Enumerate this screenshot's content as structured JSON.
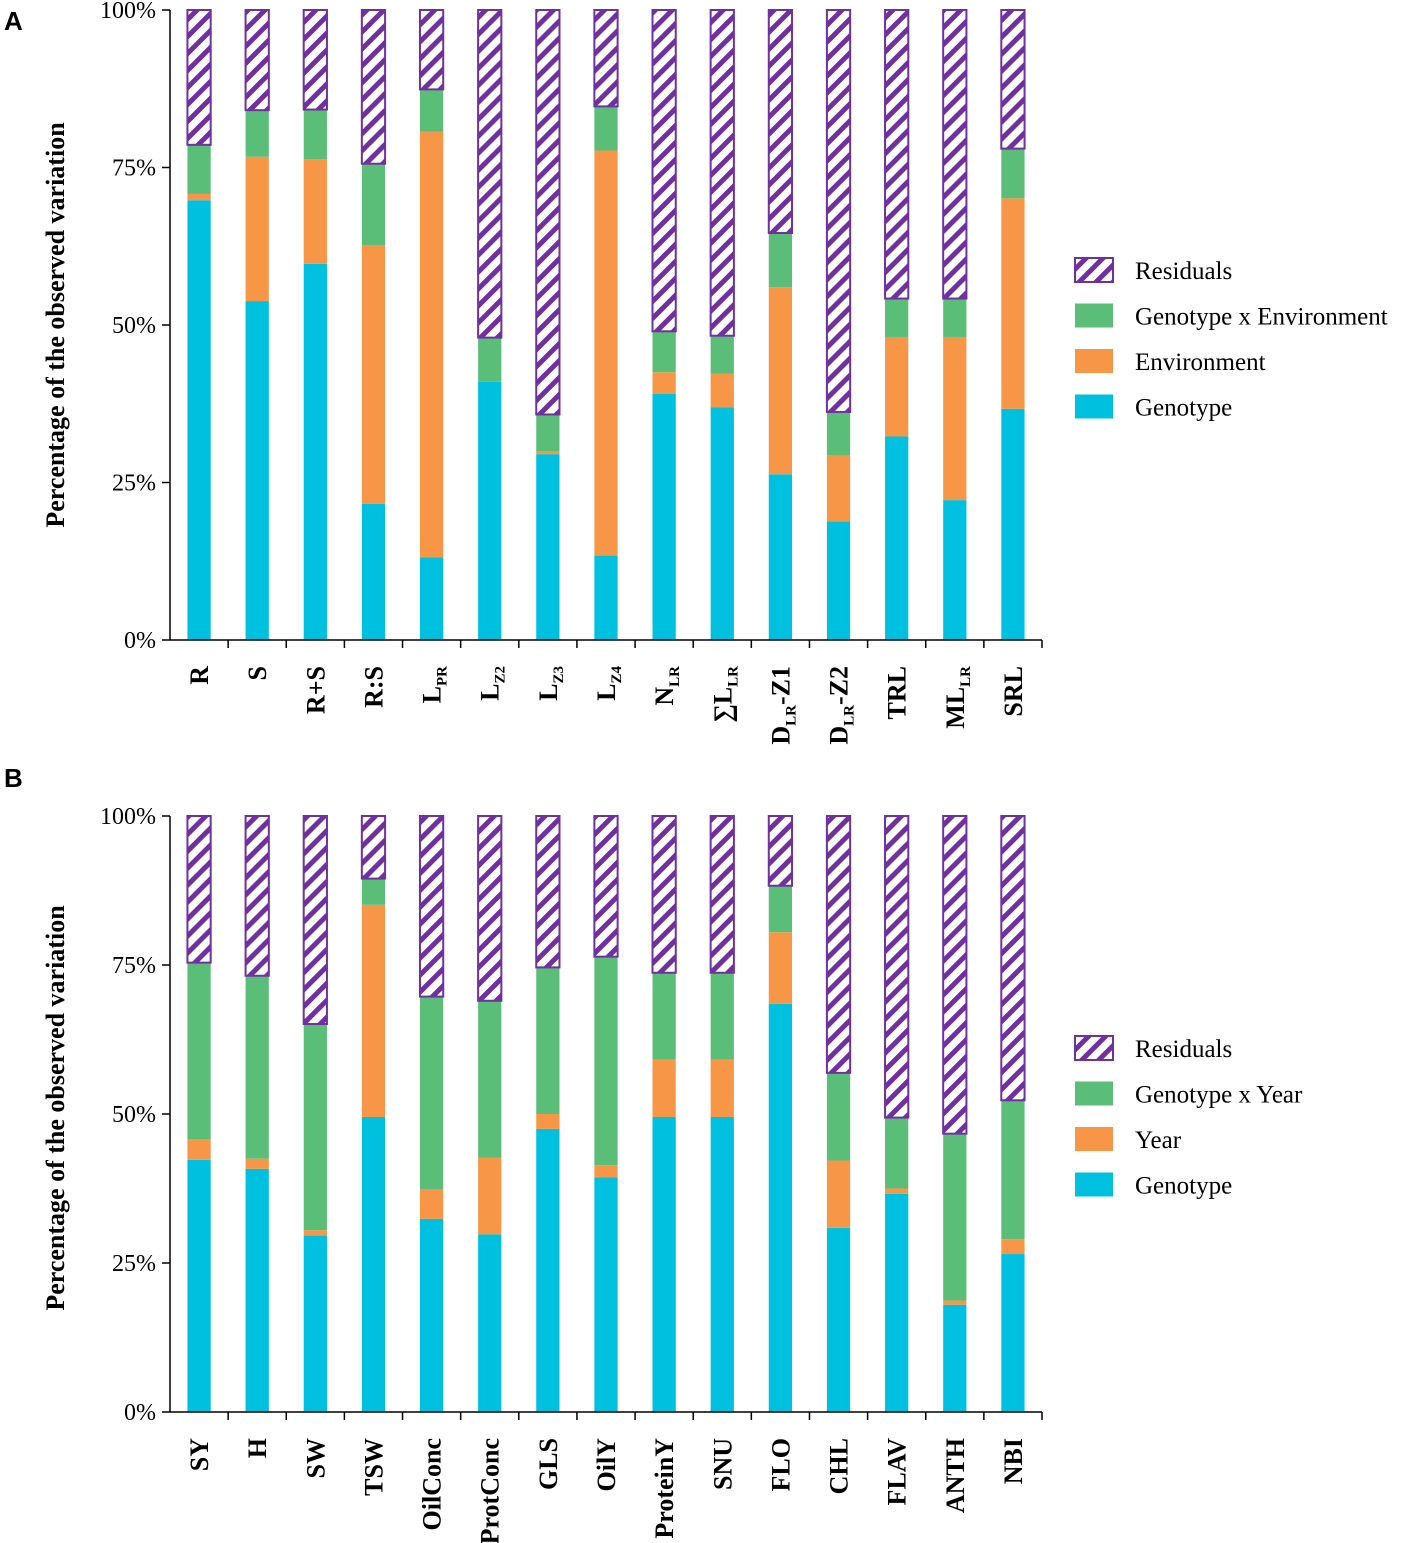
{
  "colors": {
    "genotype": "#00C0E0",
    "environment": "#F79646",
    "interaction": "#5BBE78",
    "residuals_stroke": "#7030A0",
    "axis": "#000000"
  },
  "chart_data": [
    {
      "panel": "A",
      "type": "bar",
      "stacked": true,
      "ylabel": "Percentage of the observed variation",
      "ylim": [
        0,
        100
      ],
      "yticks": [
        "0%",
        "25%",
        "50%",
        "75%",
        "100%"
      ],
      "categories": [
        {
          "main": "R",
          "sub": "",
          "suffix": ""
        },
        {
          "main": "S",
          "sub": "",
          "suffix": ""
        },
        {
          "main": "R+S",
          "sub": "",
          "suffix": ""
        },
        {
          "main": "R:S",
          "sub": "",
          "suffix": ""
        },
        {
          "main": "L",
          "sub": "PR",
          "suffix": ""
        },
        {
          "main": "L",
          "sub": "Z2",
          "suffix": ""
        },
        {
          "main": "L",
          "sub": "Z3",
          "suffix": ""
        },
        {
          "main": "L",
          "sub": "Z4",
          "suffix": ""
        },
        {
          "main": "N",
          "sub": "LR",
          "suffix": ""
        },
        {
          "main": "∑L",
          "sub": "LR",
          "suffix": ""
        },
        {
          "main": "D",
          "sub": "LR",
          "suffix": "-Z1"
        },
        {
          "main": "D",
          "sub": "LR",
          "suffix": "-Z2"
        },
        {
          "main": "TRL",
          "sub": "",
          "suffix": ""
        },
        {
          "main": "ML",
          "sub": "LR",
          "suffix": ""
        },
        {
          "main": "SRL",
          "sub": "",
          "suffix": ""
        }
      ],
      "legend": [
        "Residuals",
        "Genotype x Environment",
        "Environment",
        "Genotype"
      ],
      "series": [
        {
          "name": "Genotype",
          "values": [
            69.8,
            53.8,
            59.7,
            21.6,
            13.1,
            41.0,
            29.5,
            13.4,
            39.1,
            36.9,
            26.3,
            18.8,
            32.3,
            22.2,
            36.7
          ]
        },
        {
          "name": "Environment",
          "values": [
            1.0,
            22.9,
            16.6,
            41.1,
            67.6,
            0.0,
            0.5,
            64.3,
            3.4,
            5.4,
            29.7,
            10.5,
            15.8,
            25.9,
            33.4
          ]
        },
        {
          "name": "Genotype x Environment",
          "values": [
            7.8,
            7.4,
            7.9,
            12.9,
            6.7,
            7.0,
            5.8,
            7.0,
            6.5,
            6.0,
            8.6,
            6.9,
            6.1,
            6.1,
            7.9
          ]
        },
        {
          "name": "Residuals",
          "values": [
            21.4,
            15.9,
            15.8,
            24.4,
            12.6,
            52.0,
            64.2,
            15.3,
            51.0,
            51.7,
            35.4,
            63.8,
            45.8,
            45.8,
            22.0
          ]
        }
      ]
    },
    {
      "panel": "B",
      "type": "bar",
      "stacked": true,
      "ylabel": "Percentage of the observed variation",
      "ylim": [
        0,
        100
      ],
      "yticks": [
        "0%",
        "25%",
        "50%",
        "75%",
        "100%"
      ],
      "categories": [
        {
          "main": "SY",
          "sub": "",
          "suffix": ""
        },
        {
          "main": "H",
          "sub": "",
          "suffix": ""
        },
        {
          "main": "SW",
          "sub": "",
          "suffix": ""
        },
        {
          "main": "TSW",
          "sub": "",
          "suffix": ""
        },
        {
          "main": "OilConc",
          "sub": "",
          "suffix": ""
        },
        {
          "main": "ProtConc",
          "sub": "",
          "suffix": ""
        },
        {
          "main": "GLS",
          "sub": "",
          "suffix": ""
        },
        {
          "main": "OilY",
          "sub": "",
          "suffix": ""
        },
        {
          "main": "ProteinY",
          "sub": "",
          "suffix": ""
        },
        {
          "main": "SNU",
          "sub": "",
          "suffix": ""
        },
        {
          "main": "FLO",
          "sub": "",
          "suffix": ""
        },
        {
          "main": "CHL",
          "sub": "",
          "suffix": ""
        },
        {
          "main": "FLAV",
          "sub": "",
          "suffix": ""
        },
        {
          "main": "ANTH",
          "sub": "",
          "suffix": ""
        },
        {
          "main": "NBI",
          "sub": "",
          "suffix": ""
        }
      ],
      "legend": [
        "Residuals",
        "Genotype x Year",
        "Year",
        "Genotype"
      ],
      "series": [
        {
          "name": "Genotype",
          "values": [
            42.3,
            40.8,
            29.6,
            49.5,
            32.4,
            29.8,
            47.5,
            39.4,
            49.5,
            49.5,
            68.5,
            30.9,
            36.6,
            18.0,
            26.5
          ]
        },
        {
          "name": "Year",
          "values": [
            3.5,
            1.7,
            0.9,
            35.6,
            4.9,
            12.9,
            2.5,
            2.0,
            9.6,
            9.6,
            12.0,
            11.3,
            0.9,
            0.7,
            2.5
          ]
        },
        {
          "name": "Genotype x Year",
          "values": [
            29.6,
            30.7,
            34.6,
            4.4,
            32.4,
            26.3,
            24.6,
            35.0,
            14.6,
            14.6,
            7.8,
            14.7,
            11.9,
            28.0,
            23.3
          ]
        },
        {
          "name": "Residuals",
          "values": [
            24.6,
            26.8,
            34.9,
            10.5,
            30.3,
            31.0,
            25.4,
            23.6,
            26.3,
            26.3,
            11.7,
            43.1,
            50.6,
            53.3,
            47.7
          ]
        }
      ]
    }
  ]
}
